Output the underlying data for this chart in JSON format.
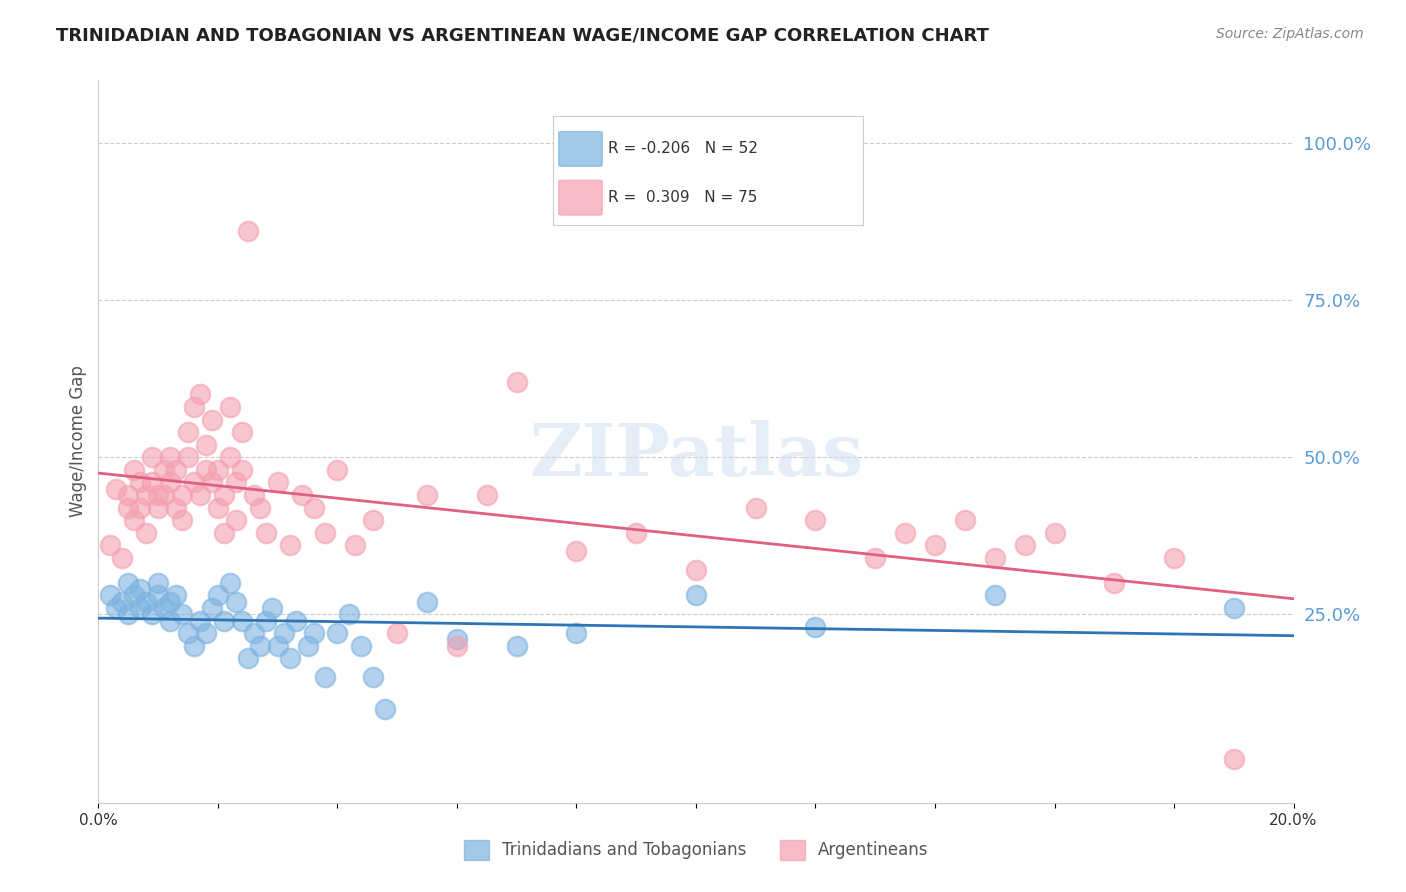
{
  "title": "TRINIDADIAN AND TOBAGONIAN VS ARGENTINEAN WAGE/INCOME GAP CORRELATION CHART",
  "source": "Source: ZipAtlas.com",
  "ylabel": "Wage/Income Gap",
  "xlabel": "",
  "bg_color": "#ffffff",
  "grid_color": "#cccccc",
  "right_axis_color": "#5b9bd5",
  "right_ytick_labels": [
    "100.0%",
    "75.0%",
    "50.0%",
    "25.0%"
  ],
  "right_ytick_values": [
    1.0,
    0.75,
    0.5,
    0.25
  ],
  "xmin": 0.0,
  "xmax": 0.2,
  "ymin": -0.05,
  "ymax": 1.1,
  "xtick_labels": [
    "0.0%",
    "",
    "",
    "",
    "",
    "",
    "",
    "",
    "",
    "",
    "20.0%"
  ],
  "blue_R": -0.206,
  "blue_N": 52,
  "pink_R": 0.309,
  "pink_N": 75,
  "blue_color": "#7db3e0",
  "pink_color": "#f4a0b0",
  "blue_line_color": "#2e75b6",
  "pink_line_color": "#e06080",
  "blue_label": "Trinidadians and Tobagonians",
  "pink_label": "Argentineans",
  "watermark": "ZIPatlas",
  "title_fontsize": 13,
  "source_fontsize": 10,
  "legend_fontsize": 12,
  "blue_scatter": {
    "x": [
      0.002,
      0.003,
      0.004,
      0.005,
      0.005,
      0.006,
      0.007,
      0.007,
      0.008,
      0.009,
      0.01,
      0.01,
      0.011,
      0.012,
      0.012,
      0.013,
      0.014,
      0.015,
      0.016,
      0.017,
      0.018,
      0.019,
      0.02,
      0.021,
      0.022,
      0.023,
      0.024,
      0.025,
      0.026,
      0.027,
      0.028,
      0.029,
      0.03,
      0.031,
      0.032,
      0.033,
      0.035,
      0.036,
      0.038,
      0.04,
      0.042,
      0.044,
      0.046,
      0.048,
      0.055,
      0.06,
      0.07,
      0.08,
      0.1,
      0.12,
      0.15,
      0.19
    ],
    "y": [
      0.28,
      0.26,
      0.27,
      0.25,
      0.3,
      0.28,
      0.29,
      0.26,
      0.27,
      0.25,
      0.28,
      0.3,
      0.26,
      0.24,
      0.27,
      0.28,
      0.25,
      0.22,
      0.2,
      0.24,
      0.22,
      0.26,
      0.28,
      0.24,
      0.3,
      0.27,
      0.24,
      0.18,
      0.22,
      0.2,
      0.24,
      0.26,
      0.2,
      0.22,
      0.18,
      0.24,
      0.2,
      0.22,
      0.15,
      0.22,
      0.25,
      0.2,
      0.15,
      0.1,
      0.27,
      0.21,
      0.2,
      0.22,
      0.28,
      0.23,
      0.28,
      0.26
    ]
  },
  "pink_scatter": {
    "x": [
      0.002,
      0.003,
      0.004,
      0.005,
      0.005,
      0.006,
      0.006,
      0.007,
      0.007,
      0.008,
      0.008,
      0.009,
      0.009,
      0.01,
      0.01,
      0.011,
      0.011,
      0.012,
      0.012,
      0.013,
      0.013,
      0.014,
      0.014,
      0.015,
      0.015,
      0.016,
      0.016,
      0.017,
      0.017,
      0.018,
      0.018,
      0.019,
      0.019,
      0.02,
      0.02,
      0.021,
      0.021,
      0.022,
      0.022,
      0.023,
      0.023,
      0.024,
      0.024,
      0.025,
      0.026,
      0.027,
      0.028,
      0.03,
      0.032,
      0.034,
      0.036,
      0.038,
      0.04,
      0.043,
      0.046,
      0.05,
      0.055,
      0.06,
      0.065,
      0.07,
      0.08,
      0.09,
      0.1,
      0.11,
      0.12,
      0.13,
      0.135,
      0.14,
      0.145,
      0.15,
      0.155,
      0.16,
      0.17,
      0.18,
      0.19
    ],
    "y": [
      0.36,
      0.45,
      0.34,
      0.44,
      0.42,
      0.48,
      0.4,
      0.46,
      0.42,
      0.44,
      0.38,
      0.5,
      0.46,
      0.44,
      0.42,
      0.48,
      0.44,
      0.5,
      0.46,
      0.42,
      0.48,
      0.44,
      0.4,
      0.5,
      0.54,
      0.46,
      0.58,
      0.6,
      0.44,
      0.48,
      0.52,
      0.46,
      0.56,
      0.42,
      0.48,
      0.38,
      0.44,
      0.5,
      0.58,
      0.46,
      0.4,
      0.54,
      0.48,
      0.86,
      0.44,
      0.42,
      0.38,
      0.46,
      0.36,
      0.44,
      0.42,
      0.38,
      0.48,
      0.36,
      0.4,
      0.22,
      0.44,
      0.2,
      0.44,
      0.62,
      0.35,
      0.38,
      0.32,
      0.42,
      0.4,
      0.34,
      0.38,
      0.36,
      0.4,
      0.34,
      0.36,
      0.38,
      0.3,
      0.34,
      0.02
    ]
  }
}
